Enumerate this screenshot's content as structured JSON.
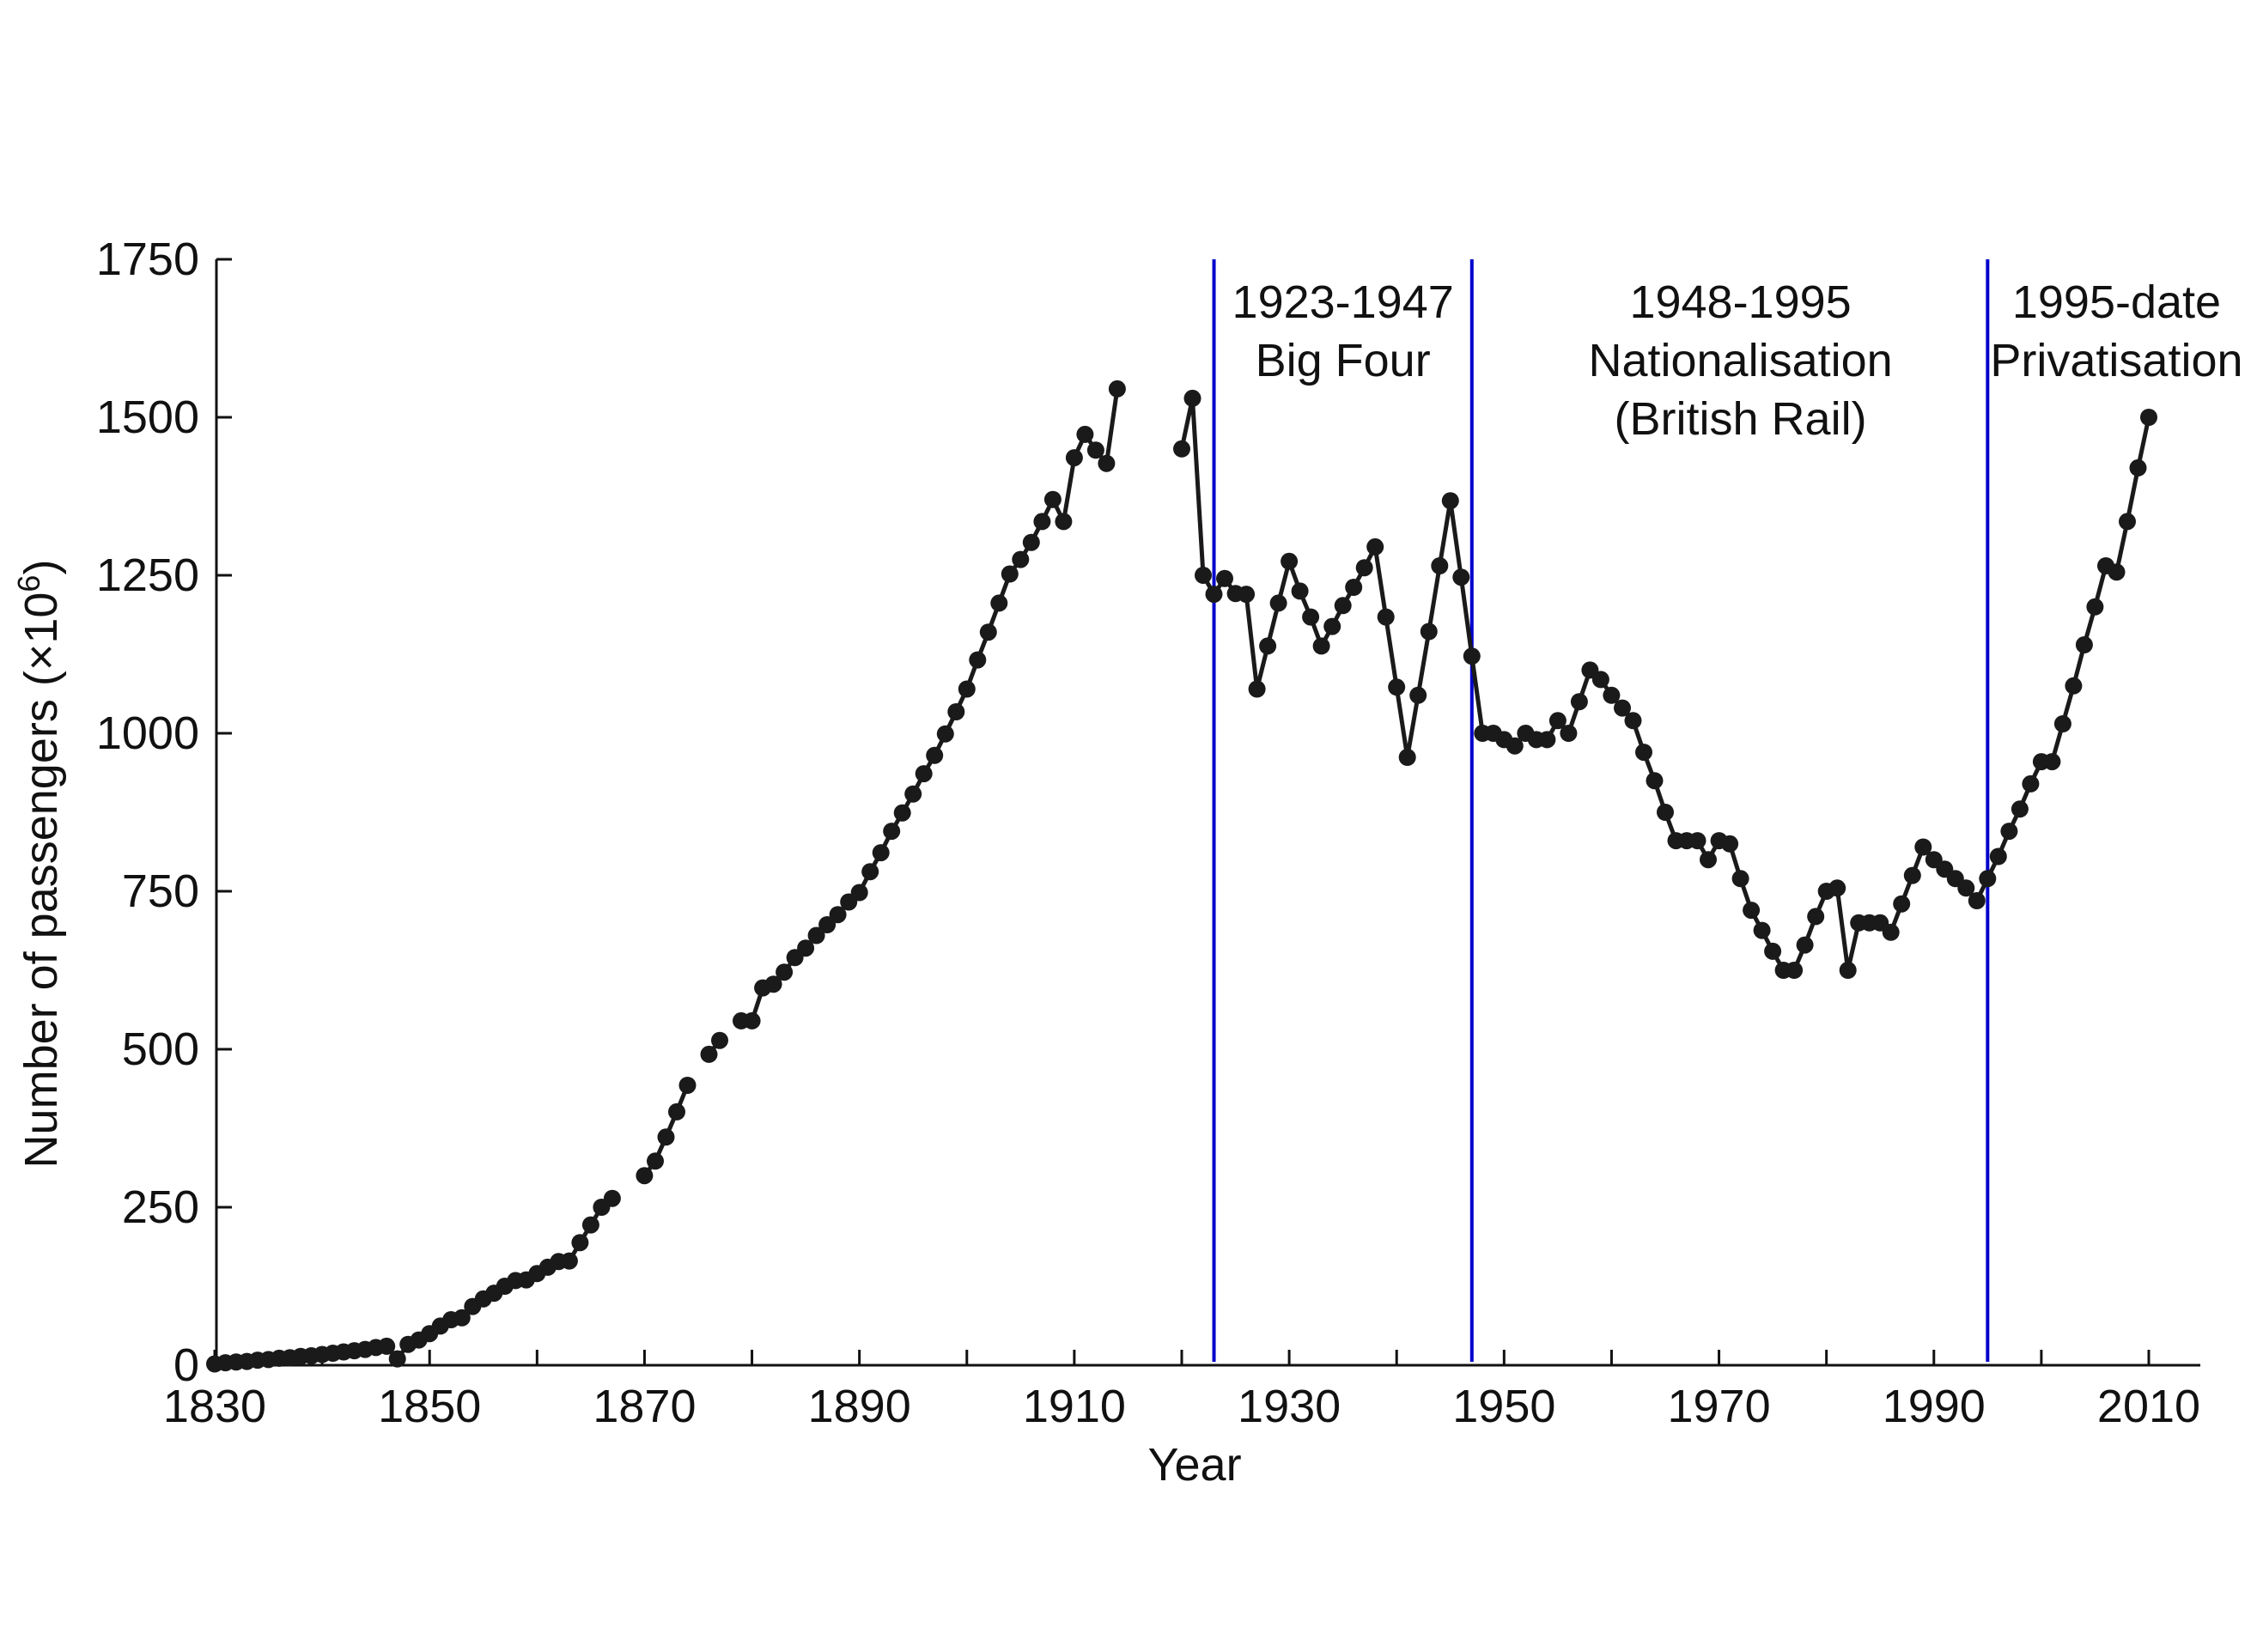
{
  "chart_data": {
    "type": "line",
    "title": "",
    "xlabel": "Year",
    "ylabel": "Number of passengers (×10",
    "ylabel_sup": "6",
    "ylabel_end": ")",
    "xlim": [
      1830,
      2015
    ],
    "ylim": [
      0,
      1750
    ],
    "xticks": [
      1830,
      1850,
      1870,
      1890,
      1910,
      1930,
      1950,
      1970,
      1990,
      2010
    ],
    "yticks": [
      0,
      250,
      500,
      750,
      1000,
      1250,
      1500,
      1750
    ],
    "grid": false,
    "legend": "none",
    "colors": {
      "series": "#1a1a1a",
      "era_line": "#0000cc"
    },
    "era_lines": [
      1923,
      1947,
      1995
    ],
    "annotations": [
      {
        "lines": [
          "1923-1947",
          "Big Four"
        ],
        "x": 1935
      },
      {
        "lines": [
          "1948-1995",
          "Nationalisation",
          "(British Rail)"
        ],
        "x": 1972
      },
      {
        "lines": [
          "1995-date",
          "Privatisation"
        ],
        "x": 2007
      }
    ],
    "segments": [
      {
        "x": [
          1830,
          1831,
          1832,
          1833,
          1834,
          1835,
          1836,
          1837,
          1838,
          1839,
          1840,
          1841,
          1842,
          1843,
          1844,
          1845,
          1846,
          1847,
          1848,
          1849,
          1850,
          1851,
          1852,
          1853,
          1854,
          1855,
          1856,
          1857,
          1858,
          1859,
          1860,
          1861,
          1862,
          1863,
          1864,
          1865,
          1866,
          1867
        ],
        "y": [
          2,
          4,
          5,
          6,
          8,
          9,
          11,
          12,
          14,
          15,
          17,
          19,
          21,
          23,
          25,
          28,
          30,
          10,
          33,
          40,
          50,
          62,
          72,
          75,
          93,
          105,
          114,
          125,
          134,
          135,
          145,
          155,
          164,
          165,
          194,
          222,
          250,
          264
        ]
      },
      {
        "x": [
          1870,
          1871,
          1872,
          1873,
          1874
        ],
        "y": [
          300,
          323,
          361,
          401,
          443
        ]
      },
      {
        "x": [
          1876,
          1877
        ],
        "y": [
          492,
          514
        ]
      },
      {
        "x": [
          1879,
          1880,
          1881,
          1882,
          1883,
          1884,
          1885,
          1886,
          1887,
          1888,
          1889,
          1890,
          1891,
          1892,
          1893,
          1894,
          1895,
          1896,
          1897,
          1898,
          1899,
          1900,
          1901,
          1902,
          1903,
          1904,
          1905,
          1906,
          1907,
          1908,
          1909,
          1910,
          1911,
          1912,
          1913,
          1914
        ],
        "y": [
          545,
          545,
          597,
          603,
          622,
          645,
          660,
          680,
          697,
          713,
          733,
          748,
          781,
          811,
          845,
          874,
          904,
          936,
          965,
          999,
          1034,
          1070,
          1116,
          1160,
          1206,
          1252,
          1275,
          1302,
          1335,
          1370,
          1335,
          1436,
          1473,
          1448,
          1427,
          1545
        ]
      },
      {
        "x": [
          1920,
          1921,
          1922,
          1923,
          1924,
          1925,
          1926,
          1927,
          1928,
          1929,
          1930,
          1931,
          1932,
          1933,
          1934,
          1935,
          1936,
          1937,
          1938,
          1939,
          1940,
          1941,
          1942,
          1943,
          1944,
          1945,
          1946,
          1947,
          1948,
          1949,
          1950,
          1951,
          1952,
          1953,
          1954,
          1955,
          1956,
          1957,
          1958,
          1959,
          1960,
          1961,
          1962,
          1963,
          1964,
          1965,
          1966,
          1967,
          1968,
          1969,
          1970,
          1971,
          1972,
          1973,
          1974,
          1975,
          1976,
          1977,
          1978,
          1979,
          1980,
          1981,
          1982,
          1983,
          1984,
          1985,
          1986,
          1987,
          1988,
          1989,
          1990,
          1991,
          1992,
          1993,
          1994,
          1995,
          1996,
          1997,
          1998,
          1999,
          2000,
          2001,
          2002,
          2003,
          2004,
          2005,
          2006,
          2007,
          2008,
          2009,
          2010
        ],
        "y": [
          1450,
          1530,
          1250,
          1220,
          1245,
          1221,
          1220,
          1070,
          1138,
          1206,
          1272,
          1225,
          1184,
          1138,
          1169,
          1202,
          1231,
          1262,
          1295,
          1184,
          1073,
          962,
          1060,
          1161,
          1265,
          1368,
          1247,
          1122,
          1000,
          1000,
          990,
          980,
          1000,
          990,
          990,
          1020,
          1000,
          1050,
          1100,
          1085,
          1060,
          1040,
          1020,
          970,
          925,
          875,
          830,
          830,
          830,
          800,
          830,
          825,
          770,
          720,
          688,
          655,
          625,
          625,
          665,
          710,
          750,
          755,
          625,
          700,
          700,
          700,
          685,
          730,
          775,
          820,
          800,
          785,
          770,
          755,
          735,
          770,
          805,
          845,
          880,
          920,
          955,
          955,
          1015,
          1075,
          1140,
          1200,
          1265,
          1255,
          1335,
          1420,
          1500
        ]
      }
    ]
  }
}
